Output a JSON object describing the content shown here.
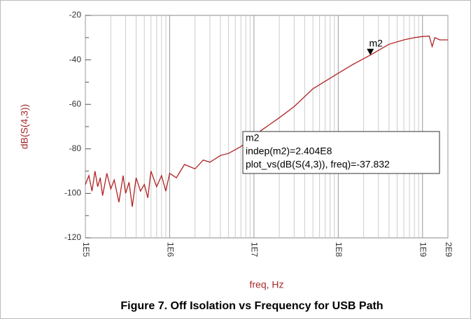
{
  "chart_data": {
    "type": "line",
    "caption": "Figure 7. Off Isolation vs Frequency for USB Path",
    "x_label": "freq, Hz",
    "y_label": "dB(S(4,3))",
    "x_log": true,
    "grid": true,
    "x": [
      100000,
      110000,
      120000,
      130000,
      140000,
      150000,
      160000,
      180000,
      200000,
      220000,
      250000,
      280000,
      300000,
      330000,
      360000,
      400000,
      450000,
      500000,
      550000,
      600000,
      700000,
      800000,
      900000,
      1000000,
      1200000,
      1500000,
      2000000,
      2500000,
      3000000,
      4000000,
      5000000,
      7000000,
      10000000,
      20000000,
      30000000,
      50000000,
      100000000,
      150000000,
      240400000,
      400000000,
      600000000,
      800000000,
      1000000000,
      1200000000,
      1300000000,
      1400000000,
      1600000000,
      2000000000
    ],
    "series": [
      {
        "name": "dB(S(4,3))",
        "color": "#b22222",
        "values": [
          -96,
          -92,
          -99,
          -90,
          -97,
          -93,
          -101,
          -91,
          -98,
          -94,
          -104,
          -92,
          -100,
          -95,
          -106,
          -93,
          -99,
          -96,
          -102,
          -90,
          -97,
          -92,
          -99,
          -91,
          -93,
          -87,
          -89,
          -85,
          -86,
          -83,
          -82,
          -79,
          -74,
          -66,
          -61,
          -53,
          -46,
          -42,
          -37.832,
          -33,
          -31,
          -30,
          -29.5,
          -29.3,
          -34,
          -30,
          -31,
          -31
        ]
      }
    ],
    "xlim": [
      100000,
      2000000000
    ],
    "xticks": [
      {
        "value": 100000,
        "label": "1E5"
      },
      {
        "value": 1000000,
        "label": "1E6"
      },
      {
        "value": 10000000,
        "label": "1E7"
      },
      {
        "value": 100000000,
        "label": "1E8"
      },
      {
        "value": 1000000000,
        "label": "1E9"
      },
      {
        "value": 2000000000,
        "label": "2E9"
      }
    ],
    "ylim": [
      -120,
      -20
    ],
    "yticks": [
      -120,
      -100,
      -80,
      -60,
      -40,
      -20
    ],
    "marker": {
      "name": "m2",
      "x": 240400000,
      "y": -37.832,
      "lines": [
        "m2",
        "indep(m2)=2.404E8",
        "plot_vs(dB(S(4,3)), freq)=-37.832"
      ]
    }
  }
}
